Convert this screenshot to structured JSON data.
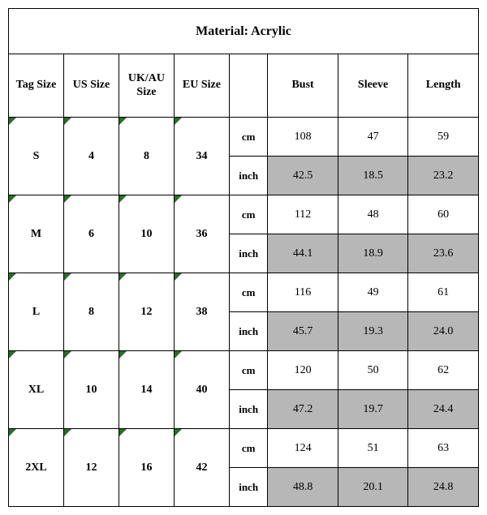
{
  "title": "Material: Acrylic",
  "headers": {
    "tag": "Tag Size",
    "us": "US Size",
    "ukau": "UK/AU Size",
    "eu": "EU Size",
    "unit": "",
    "bust": "Bust",
    "sleeve": "Sleeve",
    "length": "Length"
  },
  "units": {
    "cm": "cm",
    "inch": "inch"
  },
  "rows": [
    {
      "tag": "S",
      "us": "4",
      "ukau": "8",
      "eu": "34",
      "cm": {
        "bust": "108",
        "sleeve": "47",
        "length": "59"
      },
      "inch": {
        "bust": "42.5",
        "sleeve": "18.5",
        "length": "23.2"
      }
    },
    {
      "tag": "M",
      "us": "6",
      "ukau": "10",
      "eu": "36",
      "cm": {
        "bust": "112",
        "sleeve": "48",
        "length": "60"
      },
      "inch": {
        "bust": "44.1",
        "sleeve": "18.9",
        "length": "23.6"
      }
    },
    {
      "tag": "L",
      "us": "8",
      "ukau": "12",
      "eu": "38",
      "cm": {
        "bust": "116",
        "sleeve": "49",
        "length": "61"
      },
      "inch": {
        "bust": "45.7",
        "sleeve": "19.3",
        "length": "24.0"
      }
    },
    {
      "tag": "XL",
      "us": "10",
      "ukau": "14",
      "eu": "40",
      "cm": {
        "bust": "120",
        "sleeve": "50",
        "length": "62"
      },
      "inch": {
        "bust": "47.2",
        "sleeve": "19.7",
        "length": "24.4"
      }
    },
    {
      "tag": "2XL",
      "us": "12",
      "ukau": "16",
      "eu": "42",
      "cm": {
        "bust": "124",
        "sleeve": "51",
        "length": "63"
      },
      "inch": {
        "bust": "48.8",
        "sleeve": "20.1",
        "length": "24.8"
      }
    }
  ],
  "style": {
    "type": "table",
    "background_color": "#ffffff",
    "border_color": "#000000",
    "inch_row_bg": "#b7b7b7",
    "corner_mark_color": "#2d6b2d",
    "title_fontsize": 16,
    "header_fontsize": 14,
    "data_fontsize": 14,
    "font_family": "Times New Roman",
    "col_widths": {
      "size": 66,
      "unit": 46,
      "measure": 84
    }
  }
}
